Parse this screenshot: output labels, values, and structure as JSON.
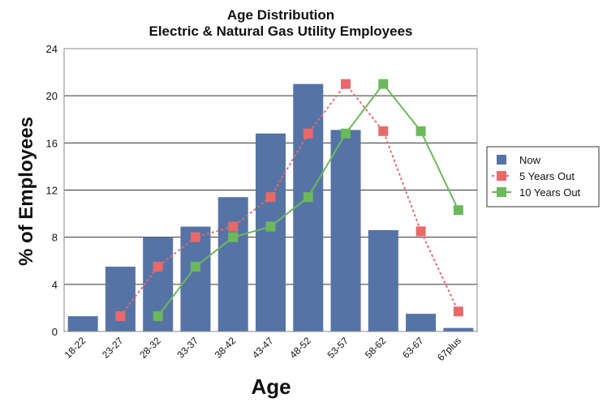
{
  "chart_data": {
    "type": "bar",
    "title": "Age Distribution",
    "subtitle": "Electric & Natural Gas Utility Employees",
    "xlabel": "Age",
    "ylabel": "% of Employees",
    "categories": [
      "18-22",
      "23-27",
      "28-32",
      "33-37",
      "38-42",
      "43-47",
      "48-52",
      "53-57",
      "58-62",
      "63-67",
      "67plus"
    ],
    "ylim": [
      0,
      24
    ],
    "yticks": [
      0,
      4,
      8,
      12,
      16,
      20,
      24
    ],
    "grid": true,
    "legend_position": "right",
    "series": [
      {
        "name": "Now",
        "kind": "bar",
        "color": "#5673a6",
        "values": [
          1.3,
          5.5,
          8.0,
          8.9,
          11.4,
          16.8,
          21.0,
          17.1,
          8.6,
          1.5,
          0.3
        ]
      },
      {
        "name": "5 Years Out",
        "kind": "line",
        "style": "dotted",
        "color": "#e8696a",
        "values": [
          null,
          1.3,
          5.5,
          8.0,
          8.9,
          11.4,
          16.8,
          21.0,
          17.0,
          8.5,
          1.7
        ]
      },
      {
        "name": "10 Years Out",
        "kind": "line",
        "style": "solid",
        "color": "#6cb85c",
        "values": [
          null,
          null,
          1.3,
          5.5,
          8.0,
          8.9,
          11.4,
          16.8,
          21.0,
          17.0,
          10.3
        ]
      }
    ]
  }
}
